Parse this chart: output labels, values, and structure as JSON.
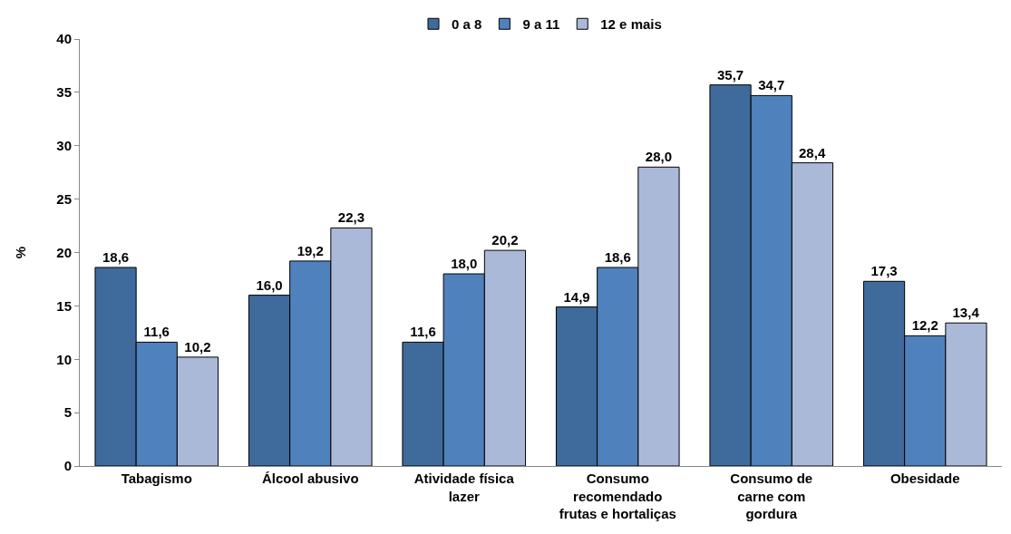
{
  "chart_data": {
    "type": "bar",
    "ylabel": "%",
    "categories": [
      "Tabagismo",
      "Álcool abusivo",
      "Atividade física\nlazer",
      "Consumo\nrecomendado\nfrutas e hortaliças",
      "Consumo de\ncarne com\ngordura",
      "Obesidade"
    ],
    "series": [
      {
        "name": "0 a 8",
        "color": "#3f6a9c",
        "values": [
          18.6,
          16.0,
          11.6,
          14.9,
          35.7,
          17.3
        ],
        "value_labels": [
          "18,6",
          "16,0",
          "11,6",
          "14,9",
          "35,7",
          "17,3"
        ]
      },
      {
        "name": "9 a 11",
        "color": "#4f81bd",
        "values": [
          11.6,
          19.2,
          18.0,
          18.6,
          34.7,
          12.2
        ],
        "value_labels": [
          "11,6",
          "19,2",
          "18,0",
          "18,6",
          "34,7",
          "12,2"
        ]
      },
      {
        "name": "12 e mais",
        "color": "#aab9d8",
        "values": [
          10.2,
          22.3,
          20.2,
          28.0,
          28.4,
          13.4
        ],
        "value_labels": [
          "10,2",
          "22,3",
          "20,2",
          "28,0",
          "28,4",
          "13,4"
        ]
      }
    ],
    "ylim": [
      0,
      40
    ],
    "yticks": [
      0,
      5,
      10,
      15,
      20,
      25,
      30,
      35,
      40
    ],
    "grid": false,
    "legend": "top"
  }
}
